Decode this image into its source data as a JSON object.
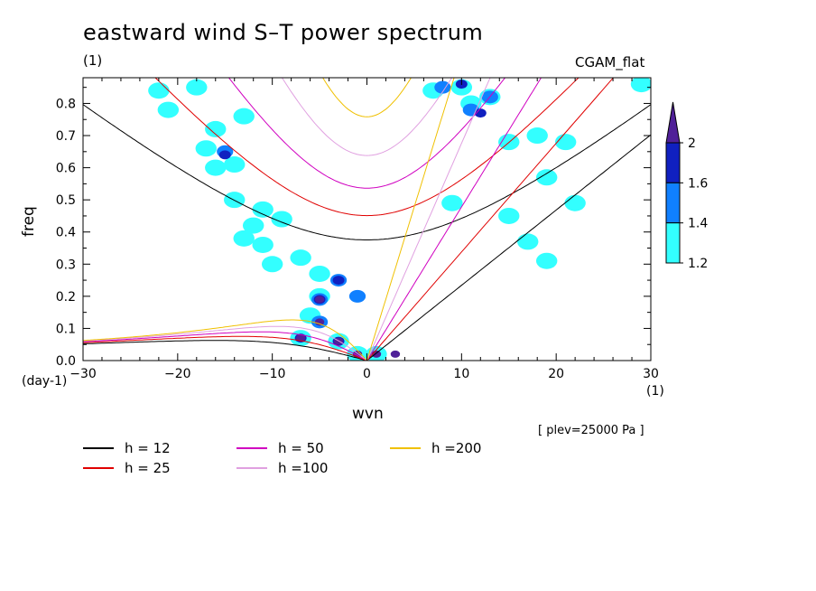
{
  "title": "eastward wind S–T power spectrum",
  "units_label": "(1)",
  "model_label": "CGAM_flat",
  "plev_label": "[ plev=25000 Pa ]",
  "colors": {
    "h12": "#000000",
    "h25": "#e00000",
    "h50": "#d000c0",
    "h100": "#e0a0e0",
    "h200": "#f0c000",
    "cb_1": "#33ffff",
    "cb_2": "#1080ff",
    "cb_3": "#1020c0",
    "cb_4": "#502098"
  },
  "chart_data": {
    "type": "heatmap",
    "xlabel": "wvn",
    "ylabel": "freq",
    "x_unit_label": "(day-1)",
    "x_unit_right": "(1)",
    "xlim": [
      -30,
      30
    ],
    "ylim": [
      0,
      0.88
    ],
    "xticks": [
      -30,
      -20,
      -10,
      0,
      10,
      20,
      30
    ],
    "xtick_labels": [
      "−30",
      "−20",
      "−10",
      "0",
      "10",
      "20",
      "30"
    ],
    "yticks": [
      0,
      0.1,
      0.2,
      0.3,
      0.4,
      0.5,
      0.6,
      0.7,
      0.8
    ],
    "ytick_labels": [
      "0.0",
      "0.1",
      "0.2",
      "0.3",
      "0.4",
      "0.5",
      "0.6",
      "0.7",
      "0.8"
    ],
    "colorbar": {
      "levels": [
        1.2,
        1.4,
        1.6,
        2
      ],
      "labels": [
        "1.2",
        "1.4",
        "1.6",
        "2"
      ]
    },
    "legend": [
      {
        "label": "h = 12",
        "color_key": "h12",
        "h": 12
      },
      {
        "label": "h = 25",
        "color_key": "h25",
        "h": 25
      },
      {
        "label": "h = 50",
        "color_key": "h50",
        "h": 50
      },
      {
        "label": "h =100",
        "color_key": "h100",
        "h": 100
      },
      {
        "label": "h =200",
        "color_key": "h200",
        "h": 200
      }
    ],
    "blobs": [
      {
        "x": -21,
        "y": 0.78,
        "level": 1
      },
      {
        "x": -22,
        "y": 0.84,
        "level": 1
      },
      {
        "x": -18,
        "y": 0.85,
        "level": 1
      },
      {
        "x": -16,
        "y": 0.72,
        "level": 1
      },
      {
        "x": -17,
        "y": 0.66,
        "level": 1
      },
      {
        "x": -15,
        "y": 0.65,
        "level": 2
      },
      {
        "x": -15,
        "y": 0.64,
        "level": 3
      },
      {
        "x": -14,
        "y": 0.61,
        "level": 1
      },
      {
        "x": -13,
        "y": 0.76,
        "level": 1
      },
      {
        "x": -16,
        "y": 0.6,
        "level": 1
      },
      {
        "x": -14,
        "y": 0.5,
        "level": 1
      },
      {
        "x": -11,
        "y": 0.47,
        "level": 1
      },
      {
        "x": -9,
        "y": 0.44,
        "level": 1
      },
      {
        "x": -12,
        "y": 0.42,
        "level": 1
      },
      {
        "x": -13,
        "y": 0.38,
        "level": 1
      },
      {
        "x": -11,
        "y": 0.36,
        "level": 1
      },
      {
        "x": -10,
        "y": 0.3,
        "level": 1
      },
      {
        "x": -7,
        "y": 0.32,
        "level": 1
      },
      {
        "x": -5,
        "y": 0.27,
        "level": 1
      },
      {
        "x": -3,
        "y": 0.25,
        "level": 2
      },
      {
        "x": -3,
        "y": 0.25,
        "level": 3
      },
      {
        "x": -5,
        "y": 0.2,
        "level": 1
      },
      {
        "x": -5,
        "y": 0.19,
        "level": 2
      },
      {
        "x": -5,
        "y": 0.19,
        "level": 3
      },
      {
        "x": -5,
        "y": 0.19,
        "level": 4
      },
      {
        "x": -6,
        "y": 0.14,
        "level": 1
      },
      {
        "x": -5,
        "y": 0.12,
        "level": 2
      },
      {
        "x": -5,
        "y": 0.12,
        "level": 4
      },
      {
        "x": -7,
        "y": 0.07,
        "level": 1
      },
      {
        "x": -7,
        "y": 0.07,
        "level": 3
      },
      {
        "x": -7,
        "y": 0.07,
        "level": 4
      },
      {
        "x": -3,
        "y": 0.06,
        "level": 1
      },
      {
        "x": -3,
        "y": 0.06,
        "level": 3
      },
      {
        "x": -3,
        "y": 0.06,
        "level": 4
      },
      {
        "x": -1,
        "y": 0.02,
        "level": 1
      },
      {
        "x": -1,
        "y": 0.02,
        "level": 4
      },
      {
        "x": 1,
        "y": 0.02,
        "level": 1
      },
      {
        "x": 1,
        "y": 0.02,
        "level": 4
      },
      {
        "x": 3,
        "y": 0.02,
        "level": 4
      },
      {
        "x": -1,
        "y": 0.2,
        "level": 2
      },
      {
        "x": 7,
        "y": 0.84,
        "level": 1
      },
      {
        "x": 8,
        "y": 0.85,
        "level": 2
      },
      {
        "x": 10,
        "y": 0.85,
        "level": 1
      },
      {
        "x": 10,
        "y": 0.86,
        "level": 3
      },
      {
        "x": 11,
        "y": 0.8,
        "level": 1
      },
      {
        "x": 11,
        "y": 0.78,
        "level": 2
      },
      {
        "x": 12,
        "y": 0.77,
        "level": 3
      },
      {
        "x": 13,
        "y": 0.82,
        "level": 1
      },
      {
        "x": 13,
        "y": 0.82,
        "level": 2
      },
      {
        "x": 15,
        "y": 0.68,
        "level": 1
      },
      {
        "x": 18,
        "y": 0.7,
        "level": 1
      },
      {
        "x": 21,
        "y": 0.68,
        "level": 1
      },
      {
        "x": 19,
        "y": 0.57,
        "level": 1
      },
      {
        "x": 22,
        "y": 0.49,
        "level": 1
      },
      {
        "x": 15,
        "y": 0.45,
        "level": 1
      },
      {
        "x": 17,
        "y": 0.37,
        "level": 1
      },
      {
        "x": 19,
        "y": 0.31,
        "level": 1
      },
      {
        "x": 29,
        "y": 0.86,
        "level": 1
      },
      {
        "x": 9,
        "y": 0.49,
        "level": 1
      }
    ]
  }
}
